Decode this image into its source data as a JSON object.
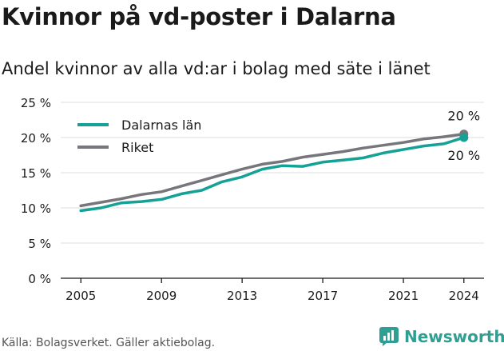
{
  "page": {
    "title": "Kvinnor på vd-poster i Dalarna",
    "subtitle": "Andel kvinnor av alla vd:ar i bolag med säte i länet",
    "source": "Källa: Bolagsverket. Gäller aktiebolag.",
    "brand": "Newsworthy"
  },
  "colors": {
    "dalarna": "#15a196",
    "riket": "#76767c",
    "grid": "#dedede",
    "axis": "#1a1a1a"
  },
  "chart_data": {
    "type": "line",
    "x": [
      2005,
      2006,
      2007,
      2008,
      2009,
      2010,
      2011,
      2012,
      2013,
      2014,
      2015,
      2016,
      2017,
      2018,
      2019,
      2020,
      2021,
      2022,
      2023,
      2024
    ],
    "x_ticks": [
      2005,
      2009,
      2013,
      2017,
      2021,
      2024
    ],
    "y_ticks": [
      0,
      5,
      10,
      15,
      20,
      25
    ],
    "y_tick_labels": [
      "0 %",
      "5 %",
      "10 %",
      "15 %",
      "20 %",
      "25 %"
    ],
    "xlim": [
      2004,
      2025
    ],
    "ylim": [
      0,
      25
    ],
    "grid": true,
    "legend": "top-left",
    "series": [
      {
        "name": "Dalarnas län",
        "color": "#15a196",
        "end_label": "20 %",
        "values": [
          9.6,
          10.0,
          10.7,
          10.9,
          11.2,
          12.0,
          12.5,
          13.7,
          14.4,
          15.5,
          16.0,
          15.9,
          16.5,
          16.8,
          17.1,
          17.8,
          18.3,
          18.8,
          19.1,
          20.0
        ]
      },
      {
        "name": "Riket",
        "color": "#76767c",
        "end_label": "20 %",
        "values": [
          10.3,
          10.8,
          11.3,
          11.9,
          12.3,
          13.1,
          13.9,
          14.7,
          15.5,
          16.2,
          16.6,
          17.2,
          17.6,
          18.0,
          18.5,
          18.9,
          19.3,
          19.8,
          20.1,
          20.5
        ]
      }
    ]
  }
}
